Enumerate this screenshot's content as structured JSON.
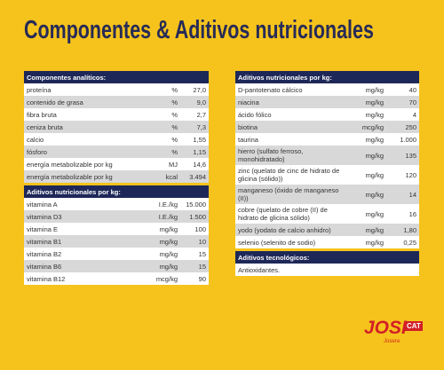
{
  "title": "Componentes & Aditivos nutricionales",
  "left": [
    {
      "header": "Componentes analíticos:",
      "rows": [
        [
          "proteína",
          "%",
          "27,0"
        ],
        [
          "contenido de grasa",
          "%",
          "9,0"
        ],
        [
          "fibra bruta",
          "%",
          "2,7"
        ],
        [
          "ceniza bruta",
          "%",
          "7,3"
        ],
        [
          "calcio",
          "%",
          "1,55"
        ],
        [
          "fósforo",
          "%",
          "1,15"
        ],
        [
          "energía metabolizable por kg",
          "MJ",
          "14,6"
        ],
        [
          "energía metabolizable por kg",
          "kcal",
          "3.494"
        ]
      ]
    },
    {
      "header": "Aditivos nutricionales por kg:",
      "rows": [
        [
          "vitamina A",
          "I.E./kg",
          "15.000"
        ],
        [
          "vitamina D3",
          "I.E./kg",
          "1.500"
        ],
        [
          "vitamina E",
          "mg/kg",
          "100"
        ],
        [
          "vitamina B1",
          "mg/kg",
          "10"
        ],
        [
          "vitamina B2",
          "mg/kg",
          "15"
        ],
        [
          "vitamina B6",
          "mg/kg",
          "15"
        ],
        [
          "vitamina B12",
          "mcg/kg",
          "90"
        ]
      ]
    }
  ],
  "right": [
    {
      "header": "Aditivos nutricionales por kg:",
      "rows": [
        [
          "D-pantotenato cálcico",
          "mg/kg",
          "40"
        ],
        [
          "niacina",
          "mg/kg",
          "70"
        ],
        [
          "ácido fólico",
          "mg/kg",
          "4"
        ],
        [
          "biotina",
          "mcg/kg",
          "250"
        ],
        [
          "taurina",
          "mg/kg",
          "1.000"
        ],
        [
          "hierro (sulfato ferroso, monohidratado)",
          "mg/kg",
          "135"
        ],
        [
          "zinc (quelato de cinc de hidrato de glicina (sólido))",
          "mg/kg",
          "120"
        ],
        [
          "manganeso (óxido de manganeso (II))",
          "mg/kg",
          "14"
        ],
        [
          "cobre (quelato de cobre (II) de hidrato de glicina sólido)",
          "mg/kg",
          "16"
        ],
        [
          "yodo (yodato de calcio anhidro)",
          "mg/kg",
          "1,80"
        ],
        [
          "selenio (selenito de sodio)",
          "mg/kg",
          "0,25"
        ]
      ]
    },
    {
      "header": "Aditivos tecnológicos:",
      "rows": [
        [
          "Antioxidantes."
        ]
      ]
    }
  ],
  "logo": {
    "brand": "JOSI",
    "sub": "CAT",
    "maker": "Josera"
  }
}
